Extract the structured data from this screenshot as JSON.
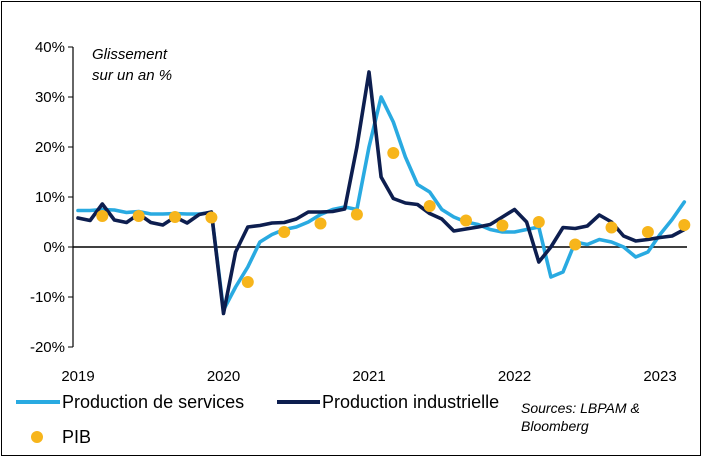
{
  "chart_data": {
    "type": "line",
    "annotation": [
      "Glissement",
      "sur un an %"
    ],
    "source": [
      "Sources: LBPAM &",
      "Bloomberg"
    ],
    "y_ticks": [
      "40%",
      "30%",
      "20%",
      "10%",
      "0%",
      "-10%",
      "-20%"
    ],
    "x_ticks": [
      "2019",
      "2020",
      "2021",
      "2022",
      "2023"
    ],
    "ylim": [
      -20,
      40
    ],
    "xlim": [
      2019,
      2023.25
    ],
    "grid": false,
    "legend_position": "bottom",
    "series": [
      {
        "name": "Production de services",
        "color": "#29aae1",
        "x": [
          2019.0,
          2019.083,
          2019.167,
          2019.25,
          2019.333,
          2019.417,
          2019.5,
          2019.583,
          2019.667,
          2019.75,
          2019.833,
          2019.917,
          2020.0,
          2020.083,
          2020.167,
          2020.25,
          2020.333,
          2020.417,
          2020.5,
          2020.583,
          2020.667,
          2020.75,
          2020.833,
          2020.917,
          2021.0,
          2021.083,
          2021.167,
          2021.25,
          2021.333,
          2021.417,
          2021.5,
          2021.583,
          2021.667,
          2021.75,
          2021.833,
          2021.917,
          2022.0,
          2022.083,
          2022.167,
          2022.25,
          2022.333,
          2022.417,
          2022.5,
          2022.583,
          2022.667,
          2022.75,
          2022.833,
          2022.917,
          2023.0,
          2023.083,
          2023.167
        ],
        "values": [
          7.3,
          7.3,
          7.5,
          7.4,
          6.9,
          7.1,
          6.6,
          6.6,
          6.7,
          6.6,
          6.6,
          6.9,
          -12.6,
          -8.0,
          -4.0,
          1.0,
          2.5,
          3.5,
          4.0,
          5.0,
          6.5,
          7.5,
          8.0,
          7.5,
          20.0,
          30.0,
          25.0,
          18.0,
          12.5,
          11.0,
          7.5,
          6.0,
          5.0,
          4.5,
          3.5,
          3.0,
          3.0,
          3.5,
          4.0,
          -6.0,
          -5.0,
          1.0,
          0.5,
          1.5,
          1.0,
          0.0,
          -2.0,
          -1.0,
          2.5,
          5.5,
          9.0
        ]
      },
      {
        "name": "Production industrielle",
        "color": "#0d1e4f",
        "x": [
          2019.0,
          2019.083,
          2019.167,
          2019.25,
          2019.333,
          2019.417,
          2019.5,
          2019.583,
          2019.667,
          2019.75,
          2019.833,
          2019.917,
          2020.0,
          2020.083,
          2020.167,
          2020.25,
          2020.333,
          2020.417,
          2020.5,
          2020.583,
          2020.667,
          2020.75,
          2020.833,
          2020.917,
          2021.0,
          2021.083,
          2021.167,
          2021.25,
          2021.333,
          2021.417,
          2021.5,
          2021.583,
          2021.667,
          2021.75,
          2021.833,
          2021.917,
          2022.0,
          2022.083,
          2022.167,
          2022.25,
          2022.333,
          2022.417,
          2022.5,
          2022.583,
          2022.667,
          2022.75,
          2022.833,
          2022.917,
          2023.0,
          2023.083,
          2023.167
        ],
        "values": [
          5.8,
          5.3,
          8.6,
          5.4,
          4.9,
          6.6,
          4.9,
          4.4,
          6.0,
          4.8,
          6.5,
          7.0,
          -13.3,
          -1.0,
          4.0,
          4.3,
          4.8,
          4.9,
          5.6,
          7.0,
          7.0,
          7.1,
          7.6,
          20.0,
          35.0,
          14.0,
          9.7,
          8.8,
          8.5,
          6.7,
          5.6,
          3.2,
          3.6,
          4.0,
          4.5,
          6.0,
          7.5,
          5.0,
          -3.0,
          0.0,
          3.9,
          3.7,
          4.2,
          6.4,
          5.0,
          2.2,
          1.2,
          1.5,
          1.9,
          2.2,
          3.5
        ]
      },
      {
        "name": "PIB",
        "type": "scatter",
        "color": "#f7b51b",
        "x": [
          2019.167,
          2019.417,
          2019.667,
          2019.917,
          2020.167,
          2020.417,
          2020.667,
          2020.917,
          2021.167,
          2021.417,
          2021.667,
          2021.917,
          2022.167,
          2022.417,
          2022.667,
          2022.917,
          2023.167
        ],
        "values": [
          6.2,
          6.2,
          6.0,
          5.9,
          -7.0,
          3.0,
          4.7,
          6.5,
          18.8,
          8.2,
          5.3,
          4.3,
          5.0,
          0.5,
          3.9,
          3.0,
          4.4
        ]
      }
    ]
  }
}
